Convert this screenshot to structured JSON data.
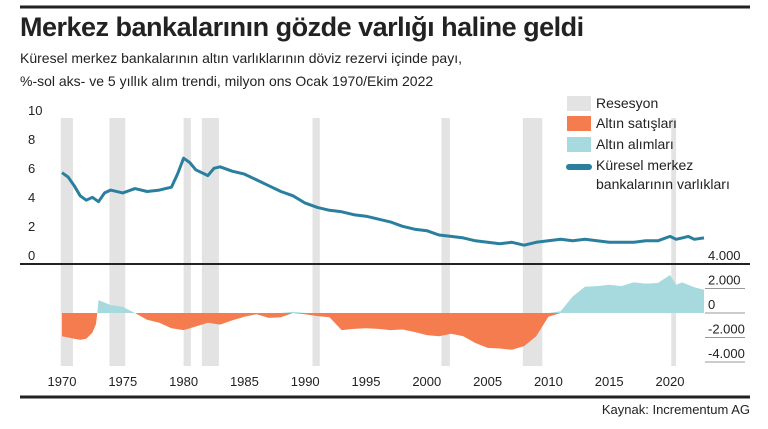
{
  "title": "Merkez bankalarının gözde varlığı haline geldi",
  "subtitle_line1": "Küresel merkez bankalarının altın varlıklarının döviz rezervi içinde payı,",
  "subtitle_line2": "%-sol aks- ve 5 yıllık alım trendi, milyon ons  Ocak 1970/Ekim 2022",
  "source": "Kaynak: Incrementum AG",
  "colors": {
    "recession": "#e3e3e3",
    "sales": "#f47c4e",
    "purchases": "#a6dadf",
    "holdings": "#2a7f9e"
  },
  "chart_data": [
    {
      "type": "line",
      "title": "Küresel merkez bankalarının varlıkları",
      "ylabel": "%",
      "ylim": [
        0,
        10
      ],
      "yticks": [
        "0",
        "2",
        "4",
        "6",
        "8",
        "10"
      ],
      "x": [
        1970,
        1970.5,
        1971,
        1971.5,
        1972,
        1972.5,
        1973,
        1973.5,
        1974,
        1975,
        1976,
        1977,
        1978,
        1979,
        1979.5,
        1980,
        1980.5,
        1981,
        1981.5,
        1982,
        1982.5,
        1983,
        1984,
        1985,
        1986,
        1987,
        1988,
        1989,
        1990,
        1991,
        1992,
        1993,
        1994,
        1995,
        1996,
        1997,
        1998,
        1999,
        2000,
        2001,
        2002,
        2003,
        2004,
        2005,
        2006,
        2007,
        2008,
        2009,
        2010,
        2011,
        2012,
        2013,
        2014,
        2015,
        2016,
        2017,
        2018,
        2019,
        2020,
        2020.5,
        2021,
        2021.5,
        2022,
        2022.8
      ],
      "values": [
        6.3,
        6.0,
        5.4,
        4.7,
        4.4,
        4.6,
        4.3,
        4.9,
        5.1,
        4.9,
        5.2,
        5.0,
        5.1,
        5.3,
        6.2,
        7.3,
        7.0,
        6.5,
        6.3,
        6.1,
        6.6,
        6.7,
        6.4,
        6.2,
        5.8,
        5.4,
        5.0,
        4.7,
        4.2,
        3.9,
        3.7,
        3.6,
        3.4,
        3.3,
        3.1,
        2.9,
        2.6,
        2.4,
        2.3,
        2.0,
        1.9,
        1.8,
        1.6,
        1.5,
        1.4,
        1.5,
        1.3,
        1.5,
        1.6,
        1.7,
        1.6,
        1.7,
        1.6,
        1.5,
        1.5,
        1.5,
        1.6,
        1.6,
        1.9,
        1.7,
        1.8,
        1.9,
        1.7,
        1.8
      ]
    },
    {
      "type": "area",
      "title": "5 yıllık alım trendi",
      "ylabel": "milyon ons",
      "ylim": [
        -4000,
        4000
      ],
      "yticks": [
        "4.000",
        "2.000",
        "0",
        "-2.000",
        "-4.000"
      ],
      "x": [
        1970,
        1971,
        1971.5,
        1972,
        1972.5,
        1972.8,
        1972.9,
        1973,
        1974,
        1975,
        1976,
        1977,
        1978,
        1979,
        1980,
        1981,
        1982,
        1983,
        1984,
        1985,
        1986,
        1987,
        1988,
        1989,
        1990,
        1991,
        1992,
        1993,
        1994,
        1995,
        1996,
        1997,
        1998,
        1999,
        2000,
        2001,
        2002,
        2003,
        2004,
        2005,
        2006,
        2007,
        2008,
        2009,
        2010,
        2011,
        2012,
        2013,
        2014,
        2015,
        2016,
        2017,
        2018,
        2019,
        2020,
        2020.5,
        2021,
        2022,
        2022.8
      ],
      "values": [
        -1900,
        -2100,
        -2200,
        -2100,
        -1600,
        -900,
        0,
        1050,
        650,
        500,
        0,
        -550,
        -800,
        -1250,
        -1400,
        -1100,
        -800,
        -950,
        -600,
        -300,
        -100,
        -400,
        -350,
        100,
        -100,
        -250,
        -350,
        -1400,
        -1300,
        -1250,
        -1300,
        -1400,
        -1350,
        -1550,
        -1800,
        -1900,
        -1700,
        -1900,
        -2450,
        -2850,
        -2900,
        -3000,
        -2700,
        -1900,
        -300,
        150,
        1350,
        2150,
        2200,
        2300,
        2200,
        2500,
        2400,
        2450,
        3100,
        2300,
        2500,
        2100,
        1900
      ]
    }
  ],
  "xticks": [
    "1970",
    "1975",
    "1980",
    "1985",
    "1990",
    "1995",
    "2000",
    "2005",
    "2010",
    "2015",
    "2020"
  ],
  "recessions": [
    [
      1969.9,
      1970.9
    ],
    [
      1973.9,
      1975.2
    ],
    [
      1980.0,
      1980.6
    ],
    [
      1981.5,
      1982.9
    ],
    [
      1990.6,
      1991.2
    ],
    [
      2001.2,
      2001.9
    ],
    [
      2007.9,
      2009.5
    ],
    [
      2020.1,
      2020.5
    ]
  ],
  "legend": [
    "Resesyon",
    "Altın satışları",
    "Altın alımları",
    "Küresel merkez",
    "bankalarının varlıkları"
  ]
}
